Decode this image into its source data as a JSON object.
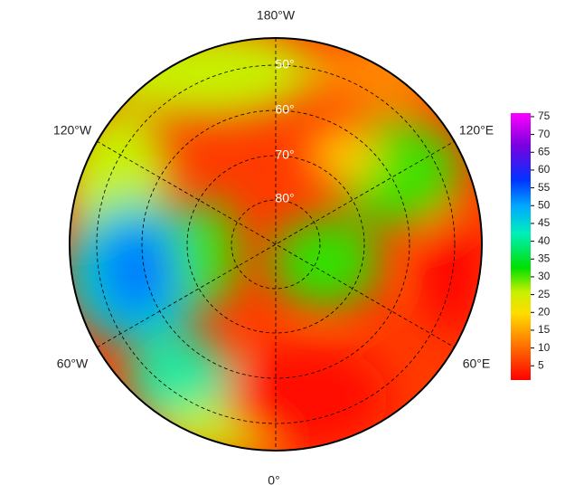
{
  "map": {
    "longitude_labels": [
      "180°W",
      "120°W",
      "120°E",
      "60°W",
      "60°E",
      "0°"
    ],
    "latitude_labels": [
      "50°",
      "60°",
      "70°",
      "80°"
    ],
    "colorbar": {
      "lim": [
        1,
        76
      ],
      "ticks": [
        5,
        10,
        15,
        20,
        25,
        30,
        35,
        40,
        45,
        50,
        55,
        60,
        65,
        70,
        75
      ]
    }
  }
}
